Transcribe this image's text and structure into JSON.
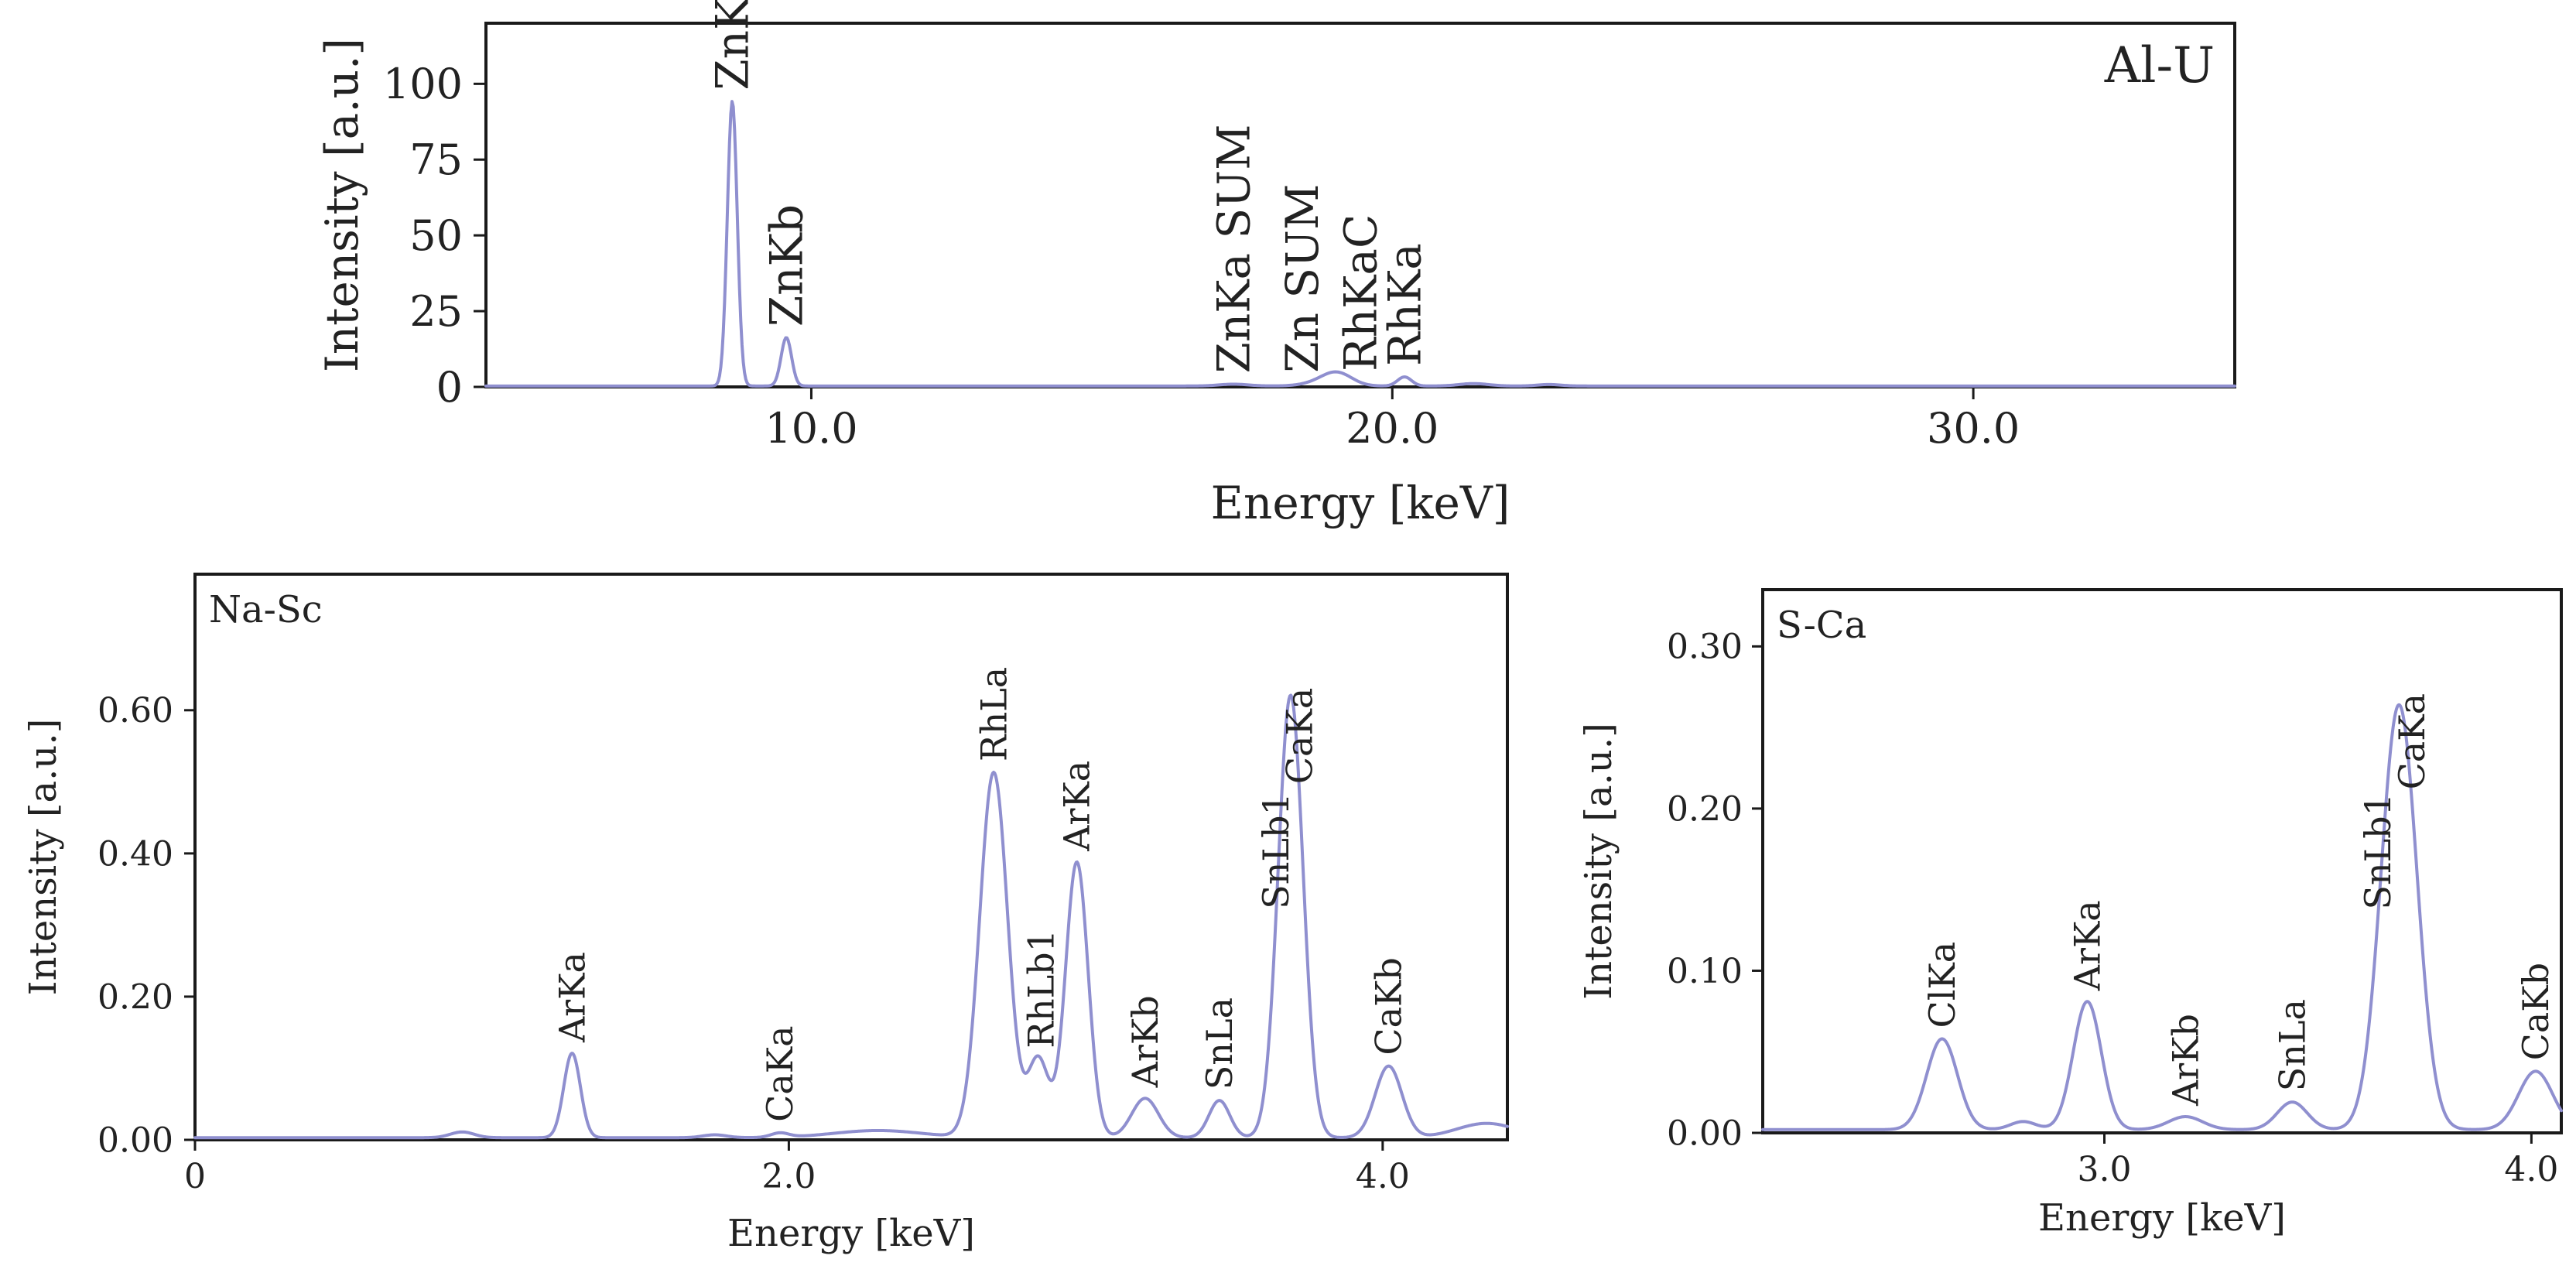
{
  "chart_data": [
    {
      "type": "line",
      "panel": "top",
      "panel_label": "Al-U",
      "xlabel": "Energy [keV]",
      "ylabel": "Intensity [a.u.]",
      "xlim": [
        4.4,
        34.5
      ],
      "ylim": [
        0,
        120
      ],
      "xticks": [
        {
          "value": 10.0,
          "label": "10.0"
        },
        {
          "value": 20.0,
          "label": "20.0"
        },
        {
          "value": 30.0,
          "label": "30.0"
        }
      ],
      "yticks": [
        {
          "value": 0,
          "label": "0"
        },
        {
          "value": 25,
          "label": "25"
        },
        {
          "value": 50,
          "label": "50"
        },
        {
          "value": 75,
          "label": "75"
        },
        {
          "value": 100,
          "label": "100"
        }
      ],
      "baseline": 0.3,
      "peaks": [
        {
          "center": 8.64,
          "height": 94,
          "width": 0.085
        },
        {
          "center": 9.57,
          "height": 16,
          "width": 0.09
        },
        {
          "center": 17.27,
          "height": 0.6,
          "width": 0.25
        },
        {
          "center": 18.8,
          "height": 1.2,
          "width": 0.3
        },
        {
          "center": 19.06,
          "height": 3.8,
          "width": 0.25
        },
        {
          "center": 20.21,
          "height": 3.0,
          "width": 0.12
        },
        {
          "center": 21.4,
          "height": 0.8,
          "width": 0.25
        },
        {
          "center": 22.7,
          "height": 0.5,
          "width": 0.2
        }
      ],
      "series": [
        {
          "name": "Al-U",
          "color": "#8f8fcf"
        }
      ],
      "annotations": [
        {
          "text": "ZnKa",
          "x": 8.64
        },
        {
          "text": "ZnKb",
          "x": 9.57
        },
        {
          "text": "ZnKa SUM",
          "x": 17.27
        },
        {
          "text": "Zn SUM",
          "x": 18.45
        },
        {
          "text": "RhKaC",
          "x": 19.45
        },
        {
          "text": "RhKa",
          "x": 20.21
        }
      ]
    },
    {
      "type": "line",
      "panel": "bottom-left",
      "panel_label": "Na-Sc",
      "xlabel": "Energy [keV]",
      "ylabel": "Intensity [a.u.]",
      "xlim": [
        0,
        4.42
      ],
      "ylim": [
        0,
        0.79
      ],
      "xticks": [
        {
          "value": 0,
          "label": "0"
        },
        {
          "value": 2.0,
          "label": "2.0"
        },
        {
          "value": 4.0,
          "label": "4.0"
        }
      ],
      "yticks": [
        {
          "value": 0.0,
          "label": "0.00"
        },
        {
          "value": 0.2,
          "label": "0.20"
        },
        {
          "value": 0.4,
          "label": "0.40"
        },
        {
          "value": 0.6,
          "label": "0.60"
        }
      ],
      "baseline": 0.003,
      "peaks": [
        {
          "center": 0.9,
          "height": 0.008,
          "width": 0.04
        },
        {
          "center": 1.27,
          "height": 0.118,
          "width": 0.028
        },
        {
          "center": 1.75,
          "height": 0.004,
          "width": 0.04
        },
        {
          "center": 1.97,
          "height": 0.006,
          "width": 0.03
        },
        {
          "center": 2.3,
          "height": 0.01,
          "width": 0.15
        },
        {
          "center": 2.69,
          "height": 0.51,
          "width": 0.047
        },
        {
          "center": 2.84,
          "height": 0.11,
          "width": 0.035
        },
        {
          "center": 2.97,
          "height": 0.385,
          "width": 0.038
        },
        {
          "center": 3.2,
          "height": 0.055,
          "width": 0.045
        },
        {
          "center": 3.45,
          "height": 0.052,
          "width": 0.035
        },
        {
          "center": 3.69,
          "height": 0.618,
          "width": 0.042
        },
        {
          "center": 4.02,
          "height": 0.1,
          "width": 0.045
        },
        {
          "center": 4.35,
          "height": 0.02,
          "width": 0.1
        }
      ],
      "series": [
        {
          "name": "Na-Sc",
          "color": "#8f8fcf"
        }
      ],
      "annotations": [
        {
          "text": "ArKa",
          "x": 1.27
        },
        {
          "text": "CaKa",
          "x": 1.97
        },
        {
          "text": "RhLa",
          "x": 2.69
        },
        {
          "text": "RhLb1",
          "x": 2.85
        },
        {
          "text": "ArKa",
          "x": 2.97
        },
        {
          "text": "ArKb",
          "x": 3.2
        },
        {
          "text": "SnLa",
          "x": 3.45
        },
        {
          "text": "SnLb1",
          "x": 3.64
        },
        {
          "text": "CaKa",
          "x": 3.72
        },
        {
          "text": "CaKb",
          "x": 4.02
        }
      ]
    },
    {
      "type": "line",
      "panel": "bottom-right",
      "panel_label": "S-Ca",
      "xlabel": "Energy [keV]",
      "ylabel": "Intensity [a.u.]",
      "xlim": [
        2.2,
        4.07
      ],
      "ylim": [
        0,
        0.335
      ],
      "xticks": [
        {
          "value": 3.0,
          "label": "3.0"
        },
        {
          "value": 4.0,
          "label": "4.0"
        }
      ],
      "yticks": [
        {
          "value": 0.0,
          "label": "0.00"
        },
        {
          "value": 0.1,
          "label": "0.10"
        },
        {
          "value": 0.2,
          "label": "0.20"
        },
        {
          "value": 0.3,
          "label": "0.30"
        }
      ],
      "baseline": 0.002,
      "peaks": [
        {
          "center": 2.62,
          "height": 0.056,
          "width": 0.036
        },
        {
          "center": 2.81,
          "height": 0.005,
          "width": 0.03
        },
        {
          "center": 2.96,
          "height": 0.079,
          "width": 0.033
        },
        {
          "center": 3.19,
          "height": 0.008,
          "width": 0.04
        },
        {
          "center": 3.44,
          "height": 0.017,
          "width": 0.035
        },
        {
          "center": 3.69,
          "height": 0.262,
          "width": 0.042
        },
        {
          "center": 4.01,
          "height": 0.036,
          "width": 0.04
        }
      ],
      "series": [
        {
          "name": "S-Ca",
          "color": "#8f8fcf"
        }
      ],
      "annotations": [
        {
          "text": "ClKa",
          "x": 2.62
        },
        {
          "text": "ArKa",
          "x": 2.96
        },
        {
          "text": "ArKb",
          "x": 3.19
        },
        {
          "text": "SnLa",
          "x": 3.44
        },
        {
          "text": "SnLb1",
          "x": 3.64
        },
        {
          "text": "CaKa",
          "x": 3.72
        },
        {
          "text": "CaKb",
          "x": 4.01
        }
      ]
    }
  ]
}
